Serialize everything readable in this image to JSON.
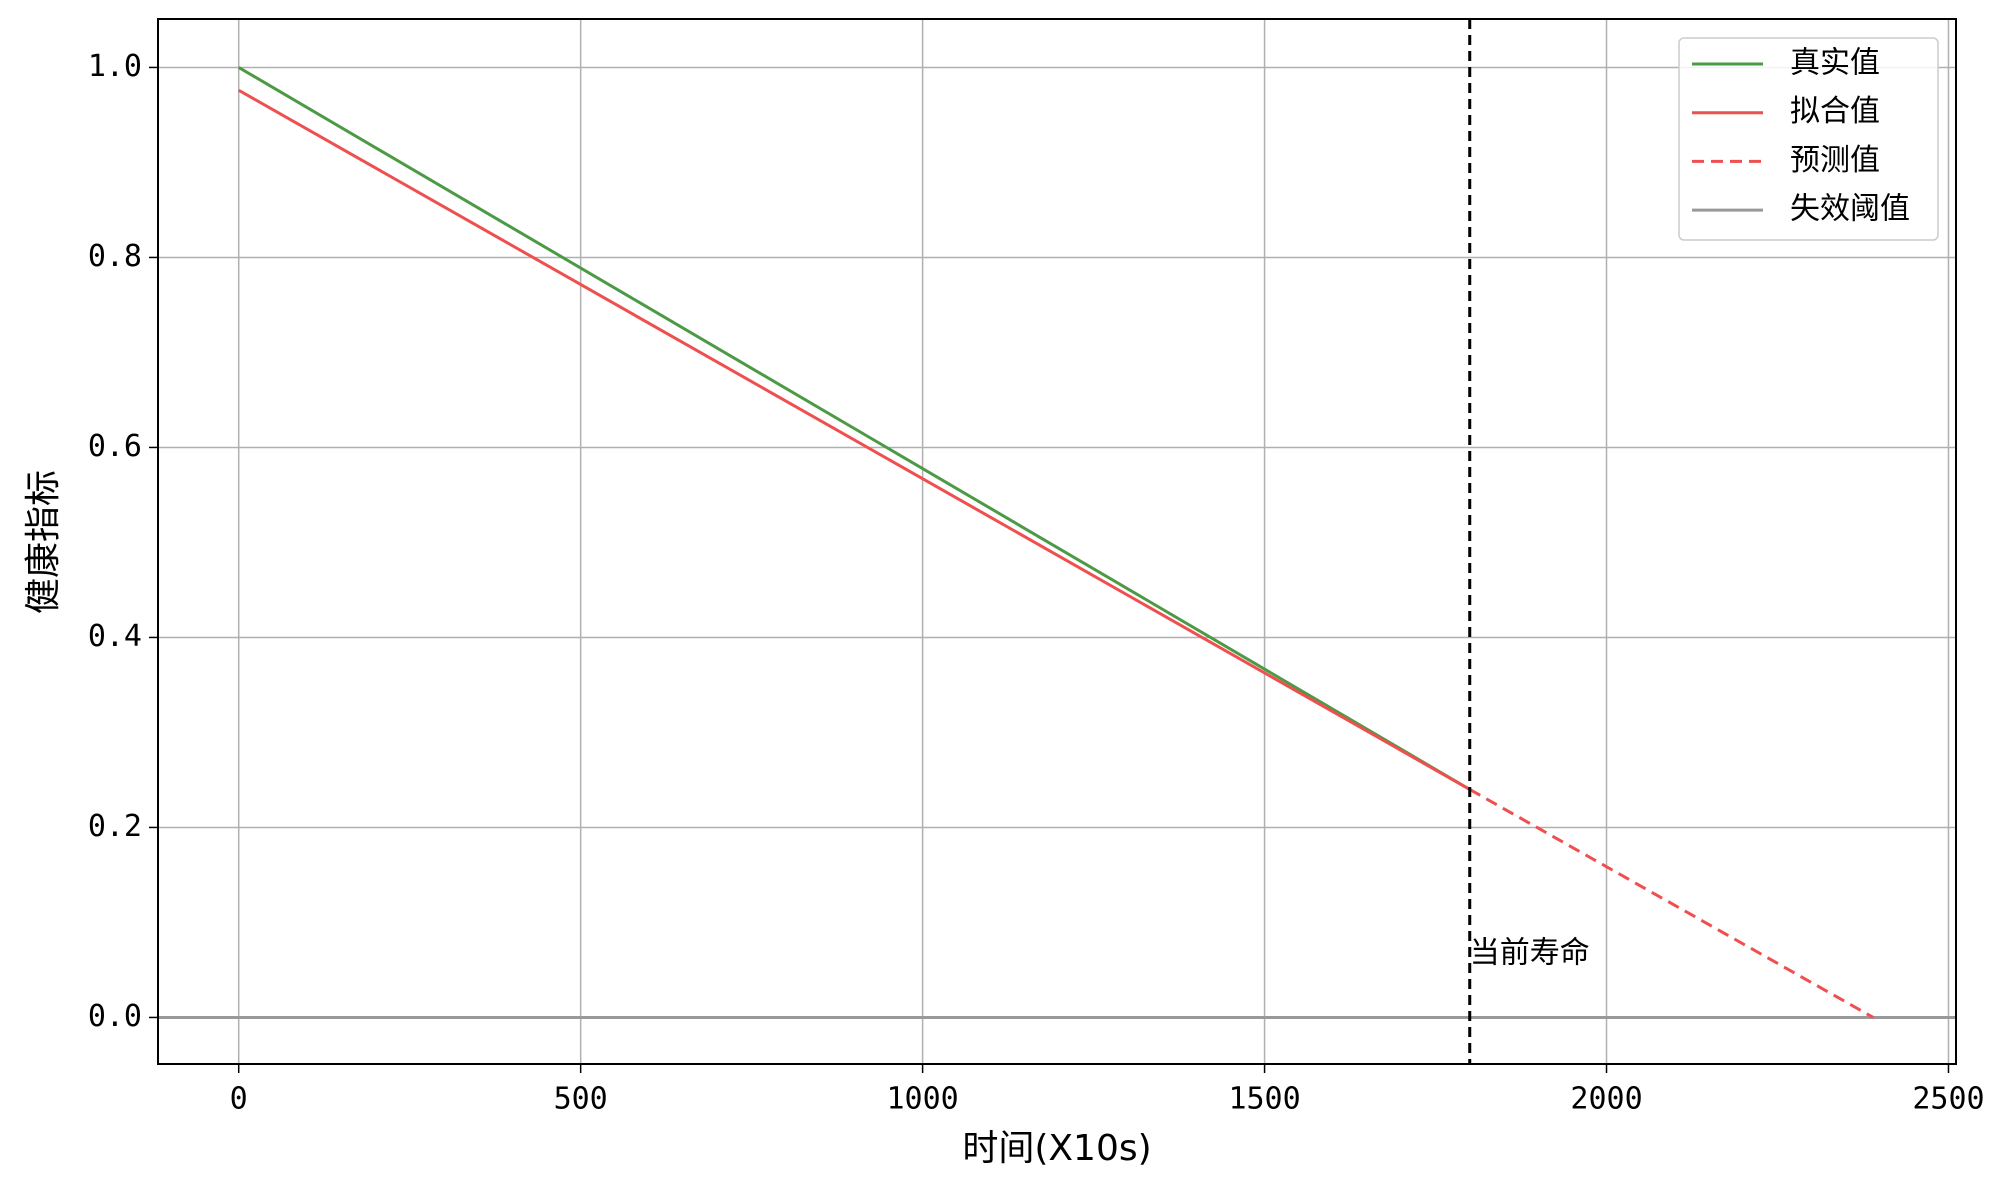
{
  "chart_data": {
    "type": "line",
    "xlabel": "时间(X10s)",
    "ylabel": "健康指标",
    "xlim": [
      -118,
      2511
    ],
    "ylim": [
      -0.049,
      1.051
    ],
    "xticks": [
      0,
      500,
      1000,
      1500,
      2000,
      2500
    ],
    "yticks": [
      {
        "value": 0,
        "label": "0.0"
      },
      {
        "value": 0.2,
        "label": "0.2"
      },
      {
        "value": 0.4,
        "label": "0.4"
      },
      {
        "value": 0.6,
        "label": "0.6"
      },
      {
        "value": 0.8,
        "label": "0.8"
      },
      {
        "value": 1,
        "label": "1.0"
      }
    ],
    "grid": true,
    "legend": "upper right",
    "series": [
      {
        "name": "真实值",
        "color": "#4c9a45",
        "dashed": false,
        "x": [
          0,
          1800
        ],
        "values": [
          1.0,
          0.24
        ]
      },
      {
        "name": "拟合值",
        "color": "#ef4f4f",
        "dashed": false,
        "x": [
          0,
          1800
        ],
        "values": [
          0.976,
          0.24
        ]
      },
      {
        "name": "预测值",
        "color": "#ef4f4f",
        "dashed": true,
        "x": [
          1800,
          2390
        ],
        "values": [
          0.24,
          0
        ]
      }
    ],
    "threshold": {
      "name": "失效阈值",
      "color": "#999999",
      "value": 0
    },
    "vline": {
      "value": 1800,
      "label": "当前寿命",
      "color": "#000000"
    }
  }
}
